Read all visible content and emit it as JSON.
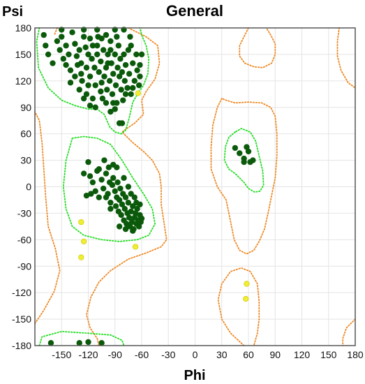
{
  "chart_data": {
    "type": "scatter",
    "title": "General",
    "xlabel": "Phi",
    "ylabel": "Psi",
    "xlim": [
      -180,
      180
    ],
    "ylim": [
      -180,
      180
    ],
    "xticks": [
      -150,
      -120,
      -90,
      -60,
      -30,
      0,
      30,
      60,
      90,
      120,
      150,
      180
    ],
    "yticks": [
      180,
      150,
      120,
      90,
      60,
      30,
      0,
      -30,
      -60,
      -90,
      -120,
      -150,
      -180
    ],
    "grid": true,
    "colors": {
      "favored_contour": "#22dd22",
      "allowed_contour": "#ee8822",
      "favored_point": "#0b5a0b",
      "outlier_point": "#f0ee30",
      "grid": "#e4e4e4",
      "frame": "#555555"
    },
    "favored_points": [
      [
        -170,
        172
      ],
      [
        -168,
        160
      ],
      [
        -165,
        150
      ],
      [
        -160,
        140
      ],
      [
        -155,
        165
      ],
      [
        -152,
        155
      ],
      [
        -150,
        170
      ],
      [
        -148,
        145
      ],
      [
        -145,
        160
      ],
      [
        -142,
        150
      ],
      [
        -140,
        132
      ],
      [
        -138,
        175
      ],
      [
        -135,
        162
      ],
      [
        -133,
        148
      ],
      [
        -130,
        155
      ],
      [
        -128,
        140
      ],
      [
        -127,
        120
      ],
      [
        -125,
        170
      ],
      [
        -123,
        158
      ],
      [
        -122,
        135
      ],
      [
        -120,
        150
      ],
      [
        -118,
        125
      ],
      [
        -116,
        145
      ],
      [
        -115,
        160
      ],
      [
        -113,
        135
      ],
      [
        -112,
        115
      ],
      [
        -110,
        150
      ],
      [
        -109,
        170
      ],
      [
        -108,
        130
      ],
      [
        -106,
        142
      ],
      [
        -105,
        118
      ],
      [
        -104,
        100
      ],
      [
        -103,
        155
      ],
      [
        -102,
        125
      ],
      [
        -100,
        135
      ],
      [
        -99,
        110
      ],
      [
        -98,
        150
      ],
      [
        -96,
        120
      ],
      [
        -95,
        165
      ],
      [
        -94,
        140
      ],
      [
        -93,
        105
      ],
      [
        -92,
        128
      ],
      [
        -90,
        150
      ],
      [
        -89,
        115
      ],
      [
        -88,
        95
      ],
      [
        -87,
        135
      ],
      [
        -86,
        160
      ],
      [
        -85,
        125
      ],
      [
        -84,
        145
      ],
      [
        -83,
        110
      ],
      [
        -82,
        130
      ],
      [
        -81,
        98
      ],
      [
        -80,
        150
      ],
      [
        -79,
        120
      ],
      [
        -78,
        138
      ],
      [
        -76,
        112
      ],
      [
        -75,
        155
      ],
      [
        -74,
        128
      ],
      [
        -73,
        170
      ],
      [
        -72,
        105
      ],
      [
        -70,
        140
      ],
      [
        -68,
        120
      ],
      [
        -66,
        150
      ],
      [
        -65,
        132
      ],
      [
        -63,
        115
      ],
      [
        -62,
        138
      ],
      [
        -60,
        150
      ],
      [
        -85,
        72
      ],
      [
        -82,
        72
      ],
      [
        -118,
        92
      ],
      [
        -112,
        90
      ],
      [
        -95,
        85
      ],
      [
        -130,
        110
      ],
      [
        -135,
        125
      ],
      [
        -125,
        100
      ],
      [
        -140,
        118
      ],
      [
        -145,
        138
      ],
      [
        -110,
        178
      ],
      [
        -100,
        172
      ],
      [
        -90,
        178
      ],
      [
        -118,
        168
      ],
      [
        -128,
        128
      ],
      [
        -132,
        138
      ],
      [
        -110,
        160
      ],
      [
        -105,
        168
      ],
      [
        -120,
        115
      ],
      [
        -100,
        95
      ],
      [
        -92,
        95
      ],
      [
        -90,
        88
      ],
      [
        -78,
        105
      ],
      [
        -70,
        112
      ],
      [
        -115,
        100
      ],
      [
        -122,
        105
      ],
      [
        -150,
        178
      ],
      [
        -125,
        178
      ],
      [
        -80,
        178
      ],
      [
        -62,
        125
      ],
      [
        -72,
        160
      ],
      [
        -95,
        155
      ],
      [
        -106,
        108
      ],
      [
        -98,
        140
      ],
      [
        -88,
        170
      ],
      [
        -120,
        28
      ],
      [
        -118,
        12
      ],
      [
        -115,
        5
      ],
      [
        -112,
        -5
      ],
      [
        -110,
        18
      ],
      [
        -108,
        -12
      ],
      [
        -105,
        8
      ],
      [
        -103,
        -2
      ],
      [
        -100,
        15
      ],
      [
        -98,
        -8
      ],
      [
        -96,
        5
      ],
      [
        -95,
        -18
      ],
      [
        -93,
        2
      ],
      [
        -92,
        10
      ],
      [
        -90,
        -5
      ],
      [
        -89,
        -22
      ],
      [
        -88,
        -12
      ],
      [
        -87,
        5
      ],
      [
        -86,
        -28
      ],
      [
        -85,
        -15
      ],
      [
        -84,
        -2
      ],
      [
        -83,
        -32
      ],
      [
        -82,
        -20
      ],
      [
        -81,
        -8
      ],
      [
        -80,
        -38
      ],
      [
        -79,
        -25
      ],
      [
        -78,
        -12
      ],
      [
        -77,
        -42
      ],
      [
        -76,
        -30
      ],
      [
        -75,
        -18
      ],
      [
        -74,
        -35
      ],
      [
        -73,
        -45
      ],
      [
        -72,
        -28
      ],
      [
        -71,
        -40
      ],
      [
        -70,
        -22
      ],
      [
        -69,
        -48
      ],
      [
        -68,
        -35
      ],
      [
        -67,
        -30
      ],
      [
        -66,
        -42
      ],
      [
        -65,
        -25
      ],
      [
        -64,
        -38
      ],
      [
        -63,
        -45
      ],
      [
        -62,
        -32
      ],
      [
        -61,
        -40
      ],
      [
        -60,
        -36
      ],
      [
        -97,
        22
      ],
      [
        -92,
        25
      ],
      [
        -102,
        30
      ],
      [
        -108,
        20
      ],
      [
        -117,
        -8
      ],
      [
        -122,
        -10
      ],
      [
        -125,
        15
      ],
      [
        -85,
        -45
      ],
      [
        -78,
        -48
      ],
      [
        -70,
        -50
      ],
      [
        -75,
        0
      ],
      [
        -80,
        10
      ],
      [
        -88,
        22
      ],
      [
        -68,
        -12
      ],
      [
        -72,
        -8
      ],
      [
        -66,
        -18
      ],
      [
        -62,
        -20
      ],
      [
        -95,
        -25
      ],
      [
        -100,
        -12
      ],
      [
        45,
        44
      ],
      [
        50,
        38
      ],
      [
        55,
        32
      ],
      [
        58,
        45
      ],
      [
        60,
        40
      ],
      [
        62,
        28
      ],
      [
        65,
        30
      ],
      [
        55,
        28
      ],
      [
        -162,
        -177
      ],
      [
        -120,
        -176
      ],
      [
        -130,
        -177
      ],
      [
        -105,
        -177
      ]
    ],
    "outlier_points": [
      [
        -64,
        106
      ],
      [
        -128,
        -40
      ],
      [
        -125,
        -62
      ],
      [
        -128,
        -80
      ],
      [
        -67,
        -68
      ],
      [
        58,
        -110
      ],
      [
        57,
        -127
      ]
    ],
    "favored_contours": [
      [
        [
          -175,
          180
        ],
        [
          -178,
          165
        ],
        [
          -176,
          135
        ],
        [
          -165,
          112
        ],
        [
          -150,
          98
        ],
        [
          -135,
          92
        ],
        [
          -120,
          88
        ],
        [
          -110,
          88
        ],
        [
          -102,
          82
        ],
        [
          -96,
          68
        ],
        [
          -90,
          62
        ],
        [
          -83,
          60
        ],
        [
          -78,
          64
        ],
        [
          -74,
          78
        ],
        [
          -70,
          96
        ],
        [
          -63,
          108
        ],
        [
          -58,
          115
        ],
        [
          -53,
          128
        ],
        [
          -52,
          145
        ],
        [
          -55,
          160
        ],
        [
          -60,
          172
        ],
        [
          -62,
          180
        ]
      ],
      [
        [
          -138,
          55
        ],
        [
          -145,
          30
        ],
        [
          -148,
          0
        ],
        [
          -145,
          -25
        ],
        [
          -138,
          -45
        ],
        [
          -125,
          -55
        ],
        [
          -105,
          -60
        ],
        [
          -85,
          -62
        ],
        [
          -65,
          -60
        ],
        [
          -52,
          -55
        ],
        [
          -45,
          -42
        ],
        [
          -48,
          -25
        ],
        [
          -58,
          -8
        ],
        [
          -70,
          10
        ],
        [
          -82,
          30
        ],
        [
          -95,
          48
        ],
        [
          -110,
          55
        ],
        [
          -125,
          57
        ],
        [
          -138,
          55
        ]
      ],
      [
        [
          45,
          62
        ],
        [
          38,
          56
        ],
        [
          34,
          45
        ],
        [
          33,
          30
        ],
        [
          38,
          20
        ],
        [
          45,
          15
        ],
        [
          55,
          5
        ],
        [
          60,
          -2
        ],
        [
          67,
          -6
        ],
        [
          73,
          -5
        ],
        [
          77,
          2
        ],
        [
          76,
          18
        ],
        [
          72,
          35
        ],
        [
          68,
          52
        ],
        [
          62,
          62
        ],
        [
          52,
          66
        ],
        [
          45,
          62
        ]
      ],
      [
        [
          -175,
          -180
        ],
        [
          -172,
          -170
        ],
        [
          -150,
          -164
        ],
        [
          -120,
          -166
        ],
        [
          -95,
          -168
        ],
        [
          -82,
          -174
        ],
        [
          -80,
          -180
        ]
      ]
    ],
    "allowed_contours": [
      [
        [
          -155,
          180
        ],
        [
          -158,
          172
        ]
      ],
      [
        [
          -75,
          180
        ],
        [
          -55,
          170
        ],
        [
          -42,
          160
        ],
        [
          -40,
          140
        ],
        [
          -45,
          122
        ],
        [
          -55,
          108
        ],
        [
          -60,
          98
        ],
        [
          -58,
          82
        ],
        [
          -68,
          72
        ],
        [
          -74,
          68
        ],
        [
          -82,
          62
        ],
        [
          -70,
          50
        ],
        [
          -58,
          40
        ],
        [
          -48,
          30
        ],
        [
          -40,
          15
        ],
        [
          -38,
          0
        ],
        [
          -38,
          -20
        ],
        [
          -35,
          -40
        ],
        [
          -32,
          -60
        ],
        [
          -38,
          -68
        ],
        [
          -55,
          -75
        ],
        [
          -75,
          -82
        ],
        [
          -95,
          -95
        ],
        [
          -108,
          -108
        ],
        [
          -117,
          -125
        ],
        [
          -122,
          -145
        ],
        [
          -118,
          -160
        ],
        [
          -110,
          -172
        ],
        [
          -108,
          -180
        ]
      ],
      [
        [
          -180,
          -155
        ],
        [
          -170,
          -140
        ],
        [
          -158,
          -118
        ],
        [
          -152,
          -95
        ],
        [
          -157,
          -70
        ],
        [
          -165,
          -45
        ],
        [
          -168,
          -10
        ],
        [
          -170,
          20
        ],
        [
          -172,
          50
        ],
        [
          -175,
          75
        ],
        [
          -180,
          85
        ]
      ],
      [
        [
          30,
          100
        ],
        [
          25,
          90
        ],
        [
          20,
          70
        ],
        [
          18,
          45
        ],
        [
          18,
          20
        ],
        [
          25,
          0
        ],
        [
          35,
          -15
        ],
        [
          40,
          -40
        ],
        [
          44,
          -60
        ],
        [
          50,
          -72
        ],
        [
          58,
          -76
        ],
        [
          66,
          -72
        ],
        [
          72,
          -62
        ],
        [
          78,
          -48
        ],
        [
          82,
          -30
        ],
        [
          86,
          -10
        ],
        [
          90,
          10
        ],
        [
          92,
          35
        ],
        [
          92,
          60
        ],
        [
          90,
          80
        ],
        [
          85,
          90
        ],
        [
          75,
          95
        ],
        [
          60,
          96
        ],
        [
          45,
          95
        ],
        [
          35,
          98
        ],
        [
          30,
          100
        ]
      ],
      [
        [
          60,
          180
        ],
        [
          55,
          170
        ],
        [
          50,
          160
        ],
        [
          50,
          148
        ],
        [
          56,
          140
        ],
        [
          66,
          136
        ],
        [
          76,
          135
        ],
        [
          86,
          140
        ],
        [
          90,
          150
        ],
        [
          90,
          162
        ],
        [
          85,
          172
        ],
        [
          80,
          180
        ]
      ],
      [
        [
          162,
          180
        ],
        [
          160,
          165
        ],
        [
          160,
          148
        ],
        [
          164,
          132
        ],
        [
          172,
          118
        ],
        [
          180,
          112
        ]
      ],
      [
        [
          55,
          -180
        ],
        [
          40,
          -166
        ],
        [
          30,
          -150
        ],
        [
          26,
          -128
        ],
        [
          30,
          -110
        ],
        [
          40,
          -96
        ],
        [
          52,
          -92
        ],
        [
          62,
          -96
        ],
        [
          70,
          -110
        ],
        [
          72,
          -130
        ],
        [
          72,
          -150
        ],
        [
          70,
          -166
        ],
        [
          66,
          -180
        ]
      ],
      [
        [
          180,
          -150
        ],
        [
          170,
          -160
        ],
        [
          166,
          -172
        ],
        [
          166,
          -180
        ]
      ]
    ]
  }
}
